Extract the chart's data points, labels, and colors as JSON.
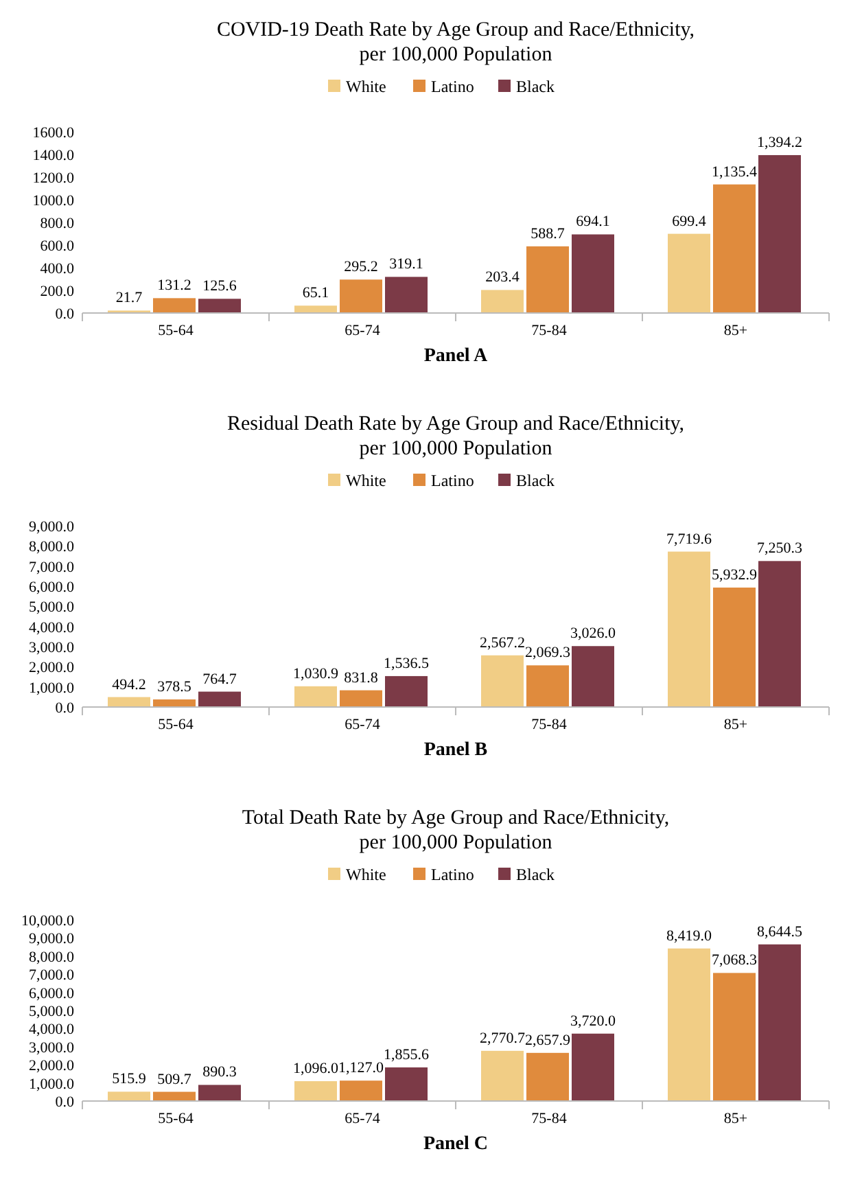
{
  "chart_data": [
    {
      "type": "bar",
      "title": "COVID-19 Death Rate by Age Group and Race/Ethnicity,\nper 100,000 Population",
      "xlabel": "Panel A",
      "categories": [
        "55-64",
        "65-74",
        "75-84",
        "85+"
      ],
      "legend": "top",
      "ylim": [
        0,
        1600
      ],
      "yticks": [
        {
          "value": 0,
          "label": "0.0"
        },
        {
          "value": 200,
          "label": "200.0"
        },
        {
          "value": 400,
          "label": "400.0"
        },
        {
          "value": 600,
          "label": "600.0"
        },
        {
          "value": 800,
          "label": "800.0"
        },
        {
          "value": 1000,
          "label": "1000.0"
        },
        {
          "value": 1200,
          "label": "1200.0"
        },
        {
          "value": 1400,
          "label": "1400.0"
        },
        {
          "value": 1600,
          "label": "1600.0"
        }
      ],
      "series": [
        {
          "name": "White",
          "color": "#f1cd85",
          "values": [
            21.7,
            65.1,
            203.4,
            699.4
          ],
          "value_labels": [
            "21.7",
            "65.1",
            "203.4",
            "699.4"
          ]
        },
        {
          "name": "Latino",
          "color": "#e08b3d",
          "values": [
            131.2,
            295.2,
            588.7,
            1135.4
          ],
          "value_labels": [
            "131.2",
            "295.2",
            "588.7",
            "1,135.4"
          ]
        },
        {
          "name": "Black",
          "color": "#7c3a47",
          "values": [
            125.6,
            319.1,
            694.1,
            1394.2
          ],
          "value_labels": [
            "125.6",
            "319.1",
            "694.1",
            "1,394.2"
          ]
        }
      ]
    },
    {
      "type": "bar",
      "title": "Residual Death Rate by Age Group and Race/Ethnicity,\nper 100,000 Population",
      "xlabel": "Panel B",
      "categories": [
        "55-64",
        "65-74",
        "75-84",
        "85+"
      ],
      "legend": "top",
      "ylim": [
        0,
        9000
      ],
      "yticks": [
        {
          "value": 0,
          "label": "0.0"
        },
        {
          "value": 1000,
          "label": "1,000.0"
        },
        {
          "value": 2000,
          "label": "2,000.0"
        },
        {
          "value": 3000,
          "label": "3,000.0"
        },
        {
          "value": 4000,
          "label": "4,000.0"
        },
        {
          "value": 5000,
          "label": "5,000.0"
        },
        {
          "value": 6000,
          "label": "6,000.0"
        },
        {
          "value": 7000,
          "label": "7,000.0"
        },
        {
          "value": 8000,
          "label": "8,000.0"
        },
        {
          "value": 9000,
          "label": "9,000.0"
        }
      ],
      "series": [
        {
          "name": "White",
          "color": "#f1cd85",
          "values": [
            494.2,
            1030.9,
            2567.2,
            7719.6
          ],
          "value_labels": [
            "494.2",
            "1,030.9",
            "2,567.2",
            "7,719.6"
          ]
        },
        {
          "name": "Latino",
          "color": "#e08b3d",
          "values": [
            378.5,
            831.8,
            2069.3,
            5932.9
          ],
          "value_labels": [
            "378.5",
            "831.8",
            "2,069.3",
            "5,932.9"
          ]
        },
        {
          "name": "Black",
          "color": "#7c3a47",
          "values": [
            764.7,
            1536.5,
            3026.0,
            7250.3
          ],
          "value_labels": [
            "764.7",
            "1,536.5",
            "3,026.0",
            "7,250.3"
          ]
        }
      ]
    },
    {
      "type": "bar",
      "title": "Total Death Rate by Age Group and Race/Ethnicity,\nper 100,000 Population",
      "xlabel": "Panel C",
      "categories": [
        "55-64",
        "65-74",
        "75-84",
        "85+"
      ],
      "legend": "top",
      "ylim": [
        0,
        10000
      ],
      "yticks": [
        {
          "value": 0,
          "label": "0.0"
        },
        {
          "value": 1000,
          "label": "1,000.0"
        },
        {
          "value": 2000,
          "label": "2,000.0"
        },
        {
          "value": 3000,
          "label": "3,000.0"
        },
        {
          "value": 4000,
          "label": "4,000.0"
        },
        {
          "value": 5000,
          "label": "5,000.0"
        },
        {
          "value": 6000,
          "label": "6,000.0"
        },
        {
          "value": 7000,
          "label": "7,000.0"
        },
        {
          "value": 8000,
          "label": "8,000.0"
        },
        {
          "value": 9000,
          "label": "9,000.0"
        },
        {
          "value": 10000,
          "label": "10,000.0"
        }
      ],
      "series": [
        {
          "name": "White",
          "color": "#f1cd85",
          "values": [
            515.9,
            1096.0,
            2770.7,
            8419.0
          ],
          "value_labels": [
            "515.9",
            "1,096.0",
            "2,770.7",
            "8,419.0"
          ]
        },
        {
          "name": "Latino",
          "color": "#e08b3d",
          "values": [
            509.7,
            1127.0,
            2657.9,
            7068.3
          ],
          "value_labels": [
            "509.7",
            "1,127.0",
            "2,657.9",
            "7,068.3"
          ]
        },
        {
          "name": "Black",
          "color": "#7c3a47",
          "values": [
            890.3,
            1855.6,
            3720.0,
            8644.5
          ],
          "value_labels": [
            "890.3",
            "1,855.6",
            "3,720.0",
            "8,644.5"
          ]
        }
      ]
    }
  ]
}
